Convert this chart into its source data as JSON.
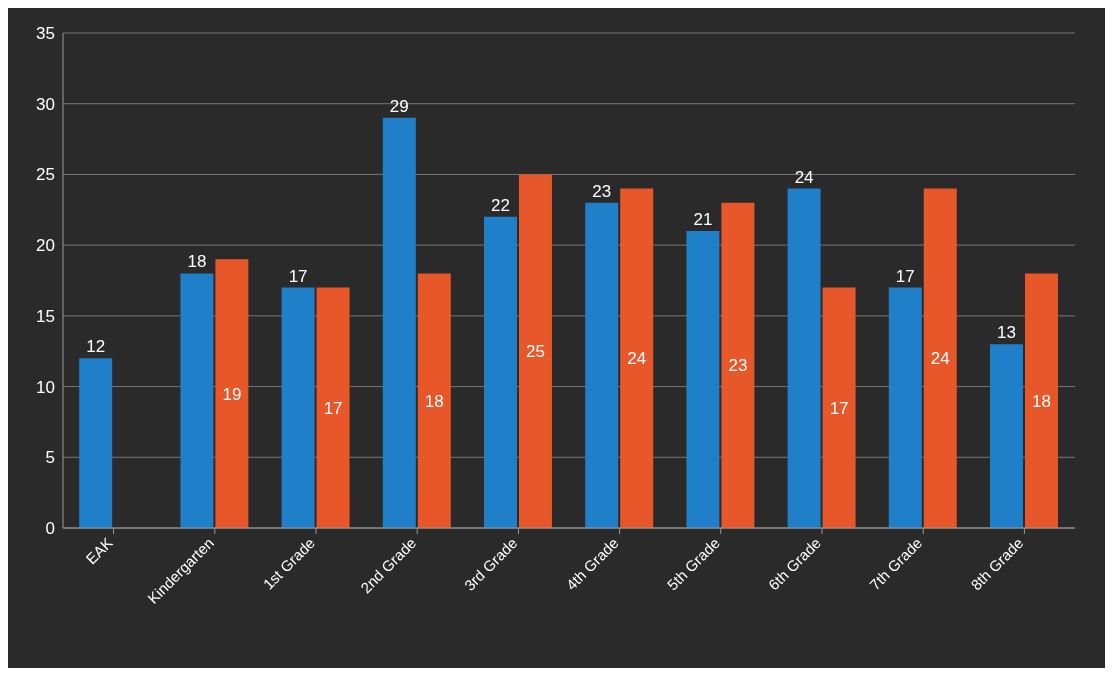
{
  "chart_data": {
    "type": "bar",
    "categories": [
      "EAK",
      "Kindergarten",
      "1st Grade",
      "2nd Grade",
      "3rd Grade",
      "4th Grade",
      "5th Grade",
      "6th Grade",
      "7th Grade",
      "8th Grade"
    ],
    "series": [
      {
        "color": "#1f7fc8",
        "values": [
          12,
          18,
          17,
          29,
          22,
          23,
          21,
          24,
          17,
          13
        ]
      },
      {
        "color": "#e8572a",
        "values": [
          null,
          19,
          17,
          18,
          25,
          24,
          23,
          17,
          24,
          18
        ]
      }
    ],
    "ylim": [
      0,
      35
    ],
    "yticks": [
      0,
      5,
      10,
      15,
      20,
      25,
      30,
      35
    ],
    "grid": "y",
    "data_labels": true
  }
}
